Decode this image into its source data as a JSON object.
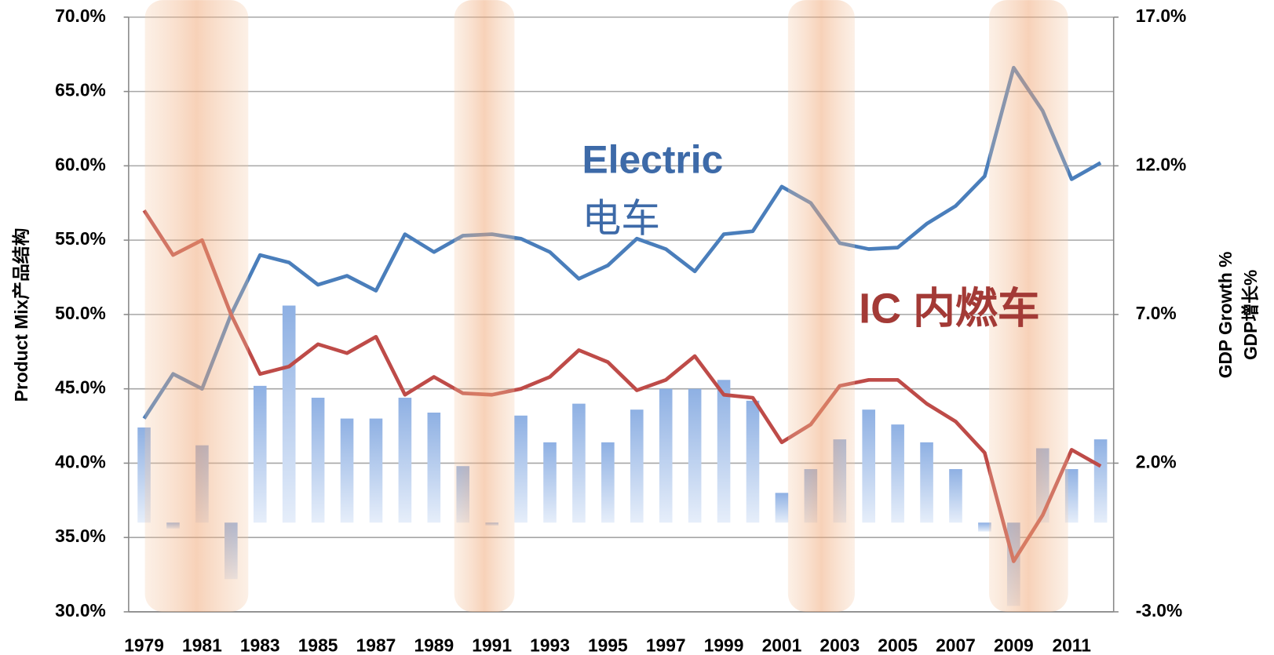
{
  "chart_data": {
    "type": "line",
    "y_axis_label": "Product Mix产品结构",
    "y2_axis_label": [
      "GDP Growth %",
      "GDP增长%"
    ],
    "annotations": [
      "Electric",
      "电车",
      "IC 内燃车"
    ],
    "categories": [
      "1979",
      null,
      "1981",
      null,
      "1983",
      null,
      "1985",
      null,
      "1987",
      null,
      "1989",
      null,
      "1991",
      null,
      "1993",
      null,
      "1995",
      null,
      "1997",
      null,
      "1999",
      null,
      "2001",
      null,
      "2003",
      null,
      "2005",
      null,
      "2007",
      null,
      "2009",
      null,
      "2011",
      null
    ],
    "series": [
      {
        "type": "line",
        "color": "#4a7ebb",
        "values": [
          43.0,
          46.0,
          45.0,
          50.0,
          54.0,
          53.5,
          52.0,
          52.6,
          51.6,
          55.4,
          54.2,
          55.3,
          55.4,
          55.1,
          54.2,
          52.4,
          53.3,
          55.1,
          54.4,
          52.9,
          55.4,
          55.6,
          58.6,
          57.5,
          54.8,
          54.4,
          54.5,
          56.1,
          57.3,
          59.3,
          66.6,
          63.7,
          59.1,
          60.2
        ]
      },
      {
        "type": "line",
        "color": "#be4b48",
        "values": [
          57.0,
          54.0,
          55.0,
          50.0,
          46.0,
          46.5,
          48.0,
          47.4,
          48.5,
          44.6,
          45.8,
          44.7,
          44.6,
          45.0,
          45.8,
          47.6,
          46.8,
          44.9,
          45.6,
          47.2,
          44.6,
          44.4,
          41.4,
          42.6,
          45.2,
          45.6,
          45.6,
          44.0,
          42.8,
          40.7,
          33.4,
          36.5,
          40.9,
          39.8
        ]
      },
      {
        "type": "bar",
        "axis": "y2",
        "color": "#8eb0e3",
        "values": [
          3.2,
          -0.2,
          2.6,
          -1.9,
          4.6,
          7.3,
          4.2,
          3.5,
          3.5,
          4.2,
          3.7,
          1.9,
          -0.1,
          3.6,
          2.7,
          4.0,
          2.7,
          3.8,
          4.5,
          4.5,
          4.8,
          4.1,
          1.0,
          1.8,
          2.8,
          3.8,
          3.3,
          2.7,
          1.8,
          -0.3,
          -2.8,
          2.5,
          1.8,
          2.8
        ]
      }
    ],
    "ylim": [
      30,
      70
    ],
    "yticks": [
      {
        "value": 30,
        "label": "30.0%"
      },
      {
        "value": 35,
        "label": "35.0%"
      },
      {
        "value": 40,
        "label": "40.0%"
      },
      {
        "value": 45,
        "label": "45.0%"
      },
      {
        "value": 50,
        "label": "50.0%"
      },
      {
        "value": 55,
        "label": "55.0%"
      },
      {
        "value": 60,
        "label": "60.0%"
      },
      {
        "value": 65,
        "label": "65.0%"
      },
      {
        "value": 70,
        "label": "70.0%"
      }
    ],
    "y2lim": [
      -3,
      17
    ],
    "y2ticks": [
      {
        "value": -3,
        "label": "-3.0%"
      },
      {
        "value": 2,
        "label": "2.0%"
      },
      {
        "value": 7,
        "label": "7.0%"
      },
      {
        "value": 12,
        "label": "12.0%"
      },
      {
        "value": 17,
        "label": "17.0%"
      }
    ],
    "grid": true
  }
}
